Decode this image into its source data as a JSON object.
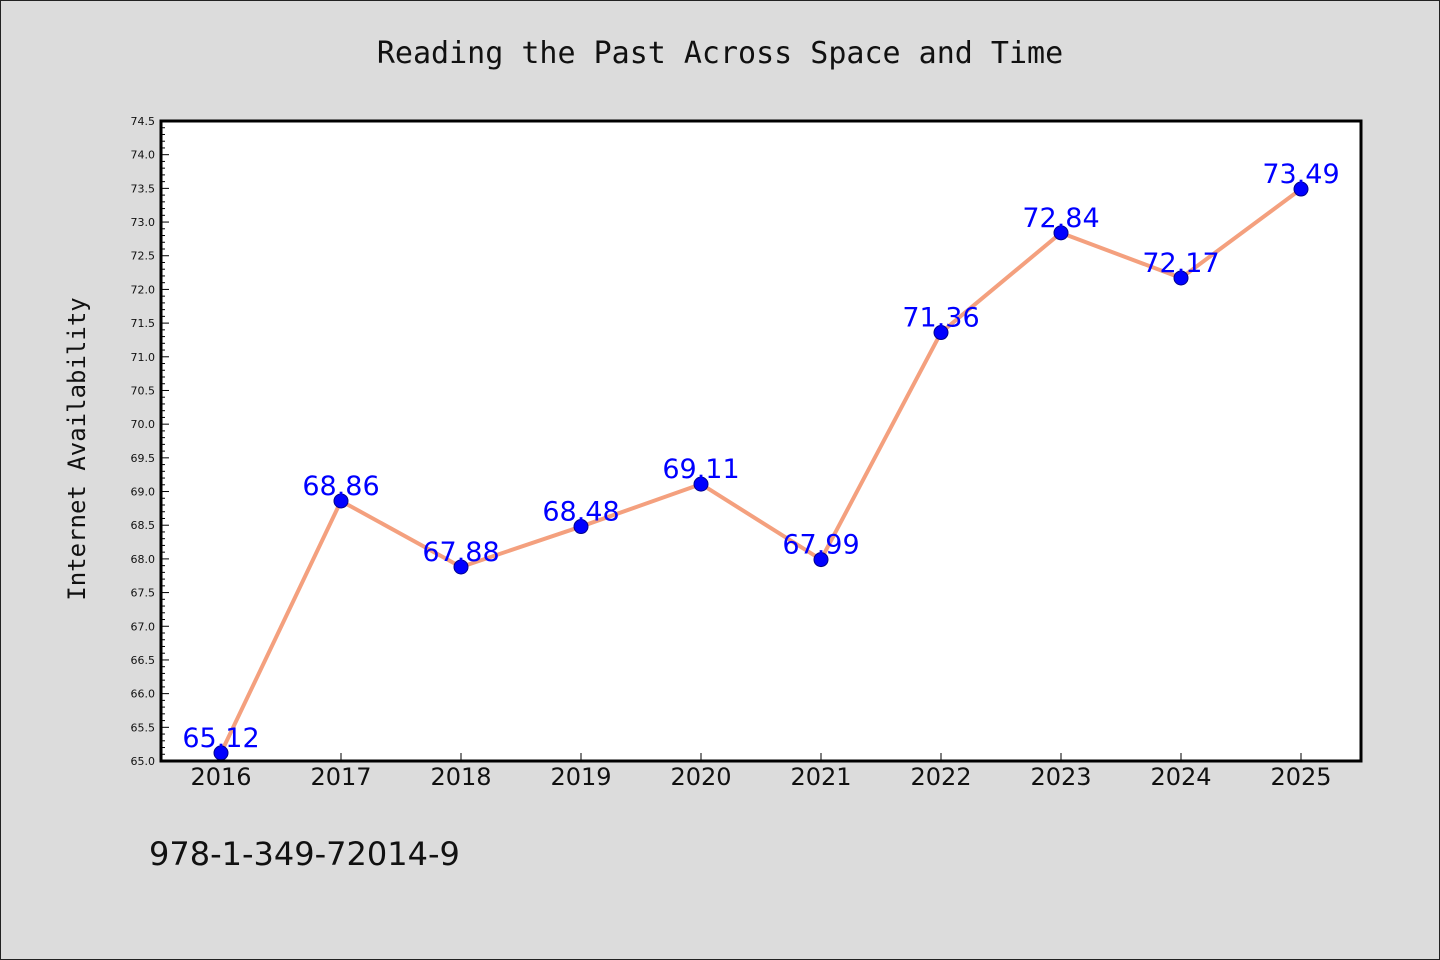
{
  "chart_data": {
    "type": "line",
    "title": "Reading the Past Across Space and Time",
    "xlabel": "",
    "ylabel": "Internet Availability",
    "categories": [
      "2016",
      "2017",
      "2018",
      "2019",
      "2020",
      "2021",
      "2022",
      "2023",
      "2024",
      "2025"
    ],
    "series": [
      {
        "values": [
          65.12,
          68.86,
          67.88,
          68.48,
          69.11,
          67.99,
          71.36,
          72.84,
          72.17,
          73.49
        ]
      }
    ],
    "data_labels": [
      "65.12",
      "68.86",
      "67.88",
      "68.48",
      "69.11",
      "67.99",
      "71.36",
      "72.84",
      "72.17",
      "73.49"
    ],
    "ylim": [
      65.0,
      74.5
    ],
    "yticks": [
      "65.0",
      "65.5",
      "66.0",
      "66.5",
      "67.0",
      "67.5",
      "68.0",
      "68.5",
      "69.0",
      "69.5",
      "70.0",
      "70.5",
      "71.0",
      "71.5",
      "72.0",
      "72.5",
      "73.0",
      "73.5",
      "74.0",
      "74.5"
    ],
    "grid": false,
    "legend": "none",
    "colors": {
      "line": "#f4a07e",
      "marker": "#0000ff",
      "label": "#0000ff",
      "background": "#dcdcdc",
      "plot_background": "#ffffff"
    }
  },
  "footer": {
    "isbn": "978-1-349-72014-9"
  }
}
